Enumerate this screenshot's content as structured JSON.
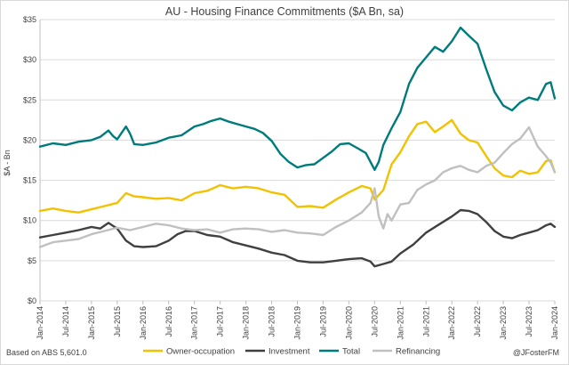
{
  "chart_data": {
    "type": "line",
    "title": "AU - Housing Finance Commitments ($A Bn, sa)",
    "ylabel": "$A - Bn",
    "xlabel": "",
    "ylim": [
      0,
      35
    ],
    "yticks": [
      0,
      5,
      10,
      15,
      20,
      25,
      30,
      35
    ],
    "ytick_labels": [
      "$0",
      "$5",
      "$10",
      "$15",
      "$20",
      "$25",
      "$30",
      "$35"
    ],
    "x_start": 2014.0,
    "x_end": 2024.0,
    "xtick_years": [
      2014,
      2014.5,
      2015,
      2015.5,
      2016,
      2016.5,
      2017,
      2017.5,
      2018,
      2018.5,
      2019,
      2019.5,
      2020,
      2020.5,
      2021,
      2021.5,
      2022,
      2022.5,
      2023,
      2023.5,
      2024
    ],
    "xtick_labels": [
      "Jan-2014",
      "Jul-2014",
      "Jan-2015",
      "Jul-2015",
      "Jan-2016",
      "Jul-2016",
      "Jan-2017",
      "Jul-2017",
      "Jan-2018",
      "Jul-2018",
      "Jan-2019",
      "Jul-2019",
      "Jan-2020",
      "Jul-2020",
      "Jan-2021",
      "Jul-2021",
      "Jan-2022",
      "Jul-2022",
      "Jan-2023",
      "Jul-2023",
      "Jan-2024"
    ],
    "gridlines": true,
    "legend_position": "bottom",
    "series": [
      {
        "name": "Owner-occupation",
        "color": "#f2c200",
        "points": [
          [
            2014.0,
            11.2
          ],
          [
            2014.25,
            11.5
          ],
          [
            2014.5,
            11.2
          ],
          [
            2014.75,
            11.0
          ],
          [
            2015.0,
            11.4
          ],
          [
            2015.25,
            11.8
          ],
          [
            2015.5,
            12.2
          ],
          [
            2015.67,
            13.4
          ],
          [
            2015.83,
            13.0
          ],
          [
            2016.0,
            12.9
          ],
          [
            2016.25,
            12.7
          ],
          [
            2016.5,
            12.8
          ],
          [
            2016.75,
            12.5
          ],
          [
            2017.0,
            13.4
          ],
          [
            2017.25,
            13.7
          ],
          [
            2017.5,
            14.4
          ],
          [
            2017.75,
            14.0
          ],
          [
            2018.0,
            14.2
          ],
          [
            2018.25,
            14.0
          ],
          [
            2018.5,
            13.5
          ],
          [
            2018.75,
            13.2
          ],
          [
            2019.0,
            11.7
          ],
          [
            2019.25,
            11.8
          ],
          [
            2019.5,
            11.6
          ],
          [
            2019.75,
            12.6
          ],
          [
            2020.0,
            13.5
          ],
          [
            2020.25,
            14.3
          ],
          [
            2020.42,
            14.0
          ],
          [
            2020.5,
            12.6
          ],
          [
            2020.67,
            13.8
          ],
          [
            2020.83,
            17.0
          ],
          [
            2021.0,
            18.5
          ],
          [
            2021.17,
            20.5
          ],
          [
            2021.33,
            22.0
          ],
          [
            2021.5,
            22.3
          ],
          [
            2021.67,
            21.0
          ],
          [
            2021.83,
            21.7
          ],
          [
            2022.0,
            22.5
          ],
          [
            2022.17,
            20.8
          ],
          [
            2022.33,
            20.0
          ],
          [
            2022.5,
            19.7
          ],
          [
            2022.67,
            18.0
          ],
          [
            2022.83,
            16.5
          ],
          [
            2023.0,
            15.6
          ],
          [
            2023.17,
            15.4
          ],
          [
            2023.33,
            16.2
          ],
          [
            2023.5,
            15.8
          ],
          [
            2023.67,
            16.0
          ],
          [
            2023.83,
            17.4
          ],
          [
            2023.92,
            17.5
          ],
          [
            2024.0,
            16.0
          ]
        ]
      },
      {
        "name": "Investment",
        "color": "#404040",
        "points": [
          [
            2014.0,
            7.9
          ],
          [
            2014.25,
            8.2
          ],
          [
            2014.5,
            8.5
          ],
          [
            2014.75,
            8.8
          ],
          [
            2015.0,
            9.2
          ],
          [
            2015.17,
            9.0
          ],
          [
            2015.33,
            9.7
          ],
          [
            2015.5,
            9.0
          ],
          [
            2015.67,
            7.5
          ],
          [
            2015.83,
            6.8
          ],
          [
            2016.0,
            6.7
          ],
          [
            2016.25,
            6.8
          ],
          [
            2016.5,
            7.5
          ],
          [
            2016.67,
            8.3
          ],
          [
            2016.83,
            8.7
          ],
          [
            2017.0,
            8.7
          ],
          [
            2017.25,
            8.2
          ],
          [
            2017.5,
            8.0
          ],
          [
            2017.75,
            7.3
          ],
          [
            2018.0,
            6.9
          ],
          [
            2018.25,
            6.5
          ],
          [
            2018.5,
            6.0
          ],
          [
            2018.75,
            5.7
          ],
          [
            2019.0,
            5.0
          ],
          [
            2019.25,
            4.8
          ],
          [
            2019.5,
            4.8
          ],
          [
            2019.75,
            5.0
          ],
          [
            2020.0,
            5.2
          ],
          [
            2020.25,
            5.3
          ],
          [
            2020.42,
            4.9
          ],
          [
            2020.5,
            4.3
          ],
          [
            2020.67,
            4.6
          ],
          [
            2020.83,
            4.9
          ],
          [
            2021.0,
            5.9
          ],
          [
            2021.25,
            7.0
          ],
          [
            2021.5,
            8.5
          ],
          [
            2021.75,
            9.5
          ],
          [
            2022.0,
            10.5
          ],
          [
            2022.17,
            11.3
          ],
          [
            2022.33,
            11.2
          ],
          [
            2022.5,
            10.8
          ],
          [
            2022.67,
            9.8
          ],
          [
            2022.83,
            8.7
          ],
          [
            2023.0,
            8.0
          ],
          [
            2023.17,
            7.8
          ],
          [
            2023.33,
            8.2
          ],
          [
            2023.5,
            8.5
          ],
          [
            2023.67,
            8.8
          ],
          [
            2023.83,
            9.4
          ],
          [
            2023.92,
            9.6
          ],
          [
            2024.0,
            9.2
          ]
        ]
      },
      {
        "name": "Total",
        "color": "#007b7b",
        "points": [
          [
            2014.0,
            19.2
          ],
          [
            2014.25,
            19.6
          ],
          [
            2014.5,
            19.4
          ],
          [
            2014.75,
            19.8
          ],
          [
            2015.0,
            20.0
          ],
          [
            2015.17,
            20.4
          ],
          [
            2015.33,
            21.2
          ],
          [
            2015.42,
            20.5
          ],
          [
            2015.5,
            20.1
          ],
          [
            2015.67,
            21.7
          ],
          [
            2015.75,
            20.8
          ],
          [
            2015.83,
            19.5
          ],
          [
            2016.0,
            19.4
          ],
          [
            2016.25,
            19.7
          ],
          [
            2016.5,
            20.3
          ],
          [
            2016.75,
            20.6
          ],
          [
            2017.0,
            21.7
          ],
          [
            2017.17,
            22.0
          ],
          [
            2017.33,
            22.4
          ],
          [
            2017.5,
            22.7
          ],
          [
            2017.67,
            22.3
          ],
          [
            2017.83,
            22.0
          ],
          [
            2018.0,
            21.7
          ],
          [
            2018.17,
            21.4
          ],
          [
            2018.33,
            20.9
          ],
          [
            2018.5,
            19.9
          ],
          [
            2018.67,
            18.3
          ],
          [
            2018.83,
            17.3
          ],
          [
            2019.0,
            16.6
          ],
          [
            2019.17,
            16.9
          ],
          [
            2019.33,
            17.0
          ],
          [
            2019.5,
            17.8
          ],
          [
            2019.67,
            18.6
          ],
          [
            2019.83,
            19.5
          ],
          [
            2020.0,
            19.6
          ],
          [
            2020.17,
            19.0
          ],
          [
            2020.33,
            18.4
          ],
          [
            2020.5,
            16.3
          ],
          [
            2020.58,
            17.3
          ],
          [
            2020.67,
            19.4
          ],
          [
            2020.83,
            21.5
          ],
          [
            2021.0,
            23.5
          ],
          [
            2021.17,
            27.0
          ],
          [
            2021.33,
            29.0
          ],
          [
            2021.5,
            30.3
          ],
          [
            2021.67,
            31.6
          ],
          [
            2021.83,
            31.0
          ],
          [
            2022.0,
            32.3
          ],
          [
            2022.17,
            34.0
          ],
          [
            2022.33,
            33.0
          ],
          [
            2022.5,
            32.0
          ],
          [
            2022.67,
            28.8
          ],
          [
            2022.83,
            26.0
          ],
          [
            2023.0,
            24.3
          ],
          [
            2023.17,
            23.7
          ],
          [
            2023.33,
            24.7
          ],
          [
            2023.5,
            25.3
          ],
          [
            2023.67,
            25.0
          ],
          [
            2023.83,
            27.0
          ],
          [
            2023.92,
            27.2
          ],
          [
            2024.0,
            25.2
          ]
        ]
      },
      {
        "name": "Refinancing",
        "color": "#c0c0c0",
        "points": [
          [
            2014.0,
            6.7
          ],
          [
            2014.25,
            7.3
          ],
          [
            2014.5,
            7.5
          ],
          [
            2014.75,
            7.7
          ],
          [
            2015.0,
            8.3
          ],
          [
            2015.25,
            8.7
          ],
          [
            2015.5,
            9.1
          ],
          [
            2015.75,
            8.8
          ],
          [
            2016.0,
            9.2
          ],
          [
            2016.25,
            9.6
          ],
          [
            2016.5,
            9.4
          ],
          [
            2016.75,
            9.0
          ],
          [
            2017.0,
            8.8
          ],
          [
            2017.25,
            8.9
          ],
          [
            2017.5,
            8.5
          ],
          [
            2017.75,
            8.9
          ],
          [
            2018.0,
            9.0
          ],
          [
            2018.25,
            8.9
          ],
          [
            2018.5,
            8.6
          ],
          [
            2018.75,
            8.8
          ],
          [
            2019.0,
            8.5
          ],
          [
            2019.25,
            8.4
          ],
          [
            2019.5,
            8.2
          ],
          [
            2019.75,
            9.2
          ],
          [
            2020.0,
            10.0
          ],
          [
            2020.25,
            11.0
          ],
          [
            2020.42,
            12.2
          ],
          [
            2020.5,
            14.0
          ],
          [
            2020.58,
            10.5
          ],
          [
            2020.67,
            9.0
          ],
          [
            2020.75,
            10.8
          ],
          [
            2020.83,
            10.0
          ],
          [
            2021.0,
            12.0
          ],
          [
            2021.17,
            12.2
          ],
          [
            2021.33,
            13.8
          ],
          [
            2021.5,
            14.5
          ],
          [
            2021.67,
            15.0
          ],
          [
            2021.83,
            16.0
          ],
          [
            2022.0,
            16.5
          ],
          [
            2022.17,
            16.8
          ],
          [
            2022.33,
            16.3
          ],
          [
            2022.5,
            16.0
          ],
          [
            2022.67,
            16.8
          ],
          [
            2022.83,
            17.2
          ],
          [
            2023.0,
            18.4
          ],
          [
            2023.17,
            19.5
          ],
          [
            2023.33,
            20.2
          ],
          [
            2023.5,
            21.6
          ],
          [
            2023.67,
            19.2
          ],
          [
            2023.83,
            18.0
          ],
          [
            2023.92,
            17.2
          ],
          [
            2024.0,
            16.0
          ]
        ]
      }
    ]
  },
  "footer": {
    "source": "Based on ABS 5,601.0",
    "credit": "@JFosterFM"
  }
}
